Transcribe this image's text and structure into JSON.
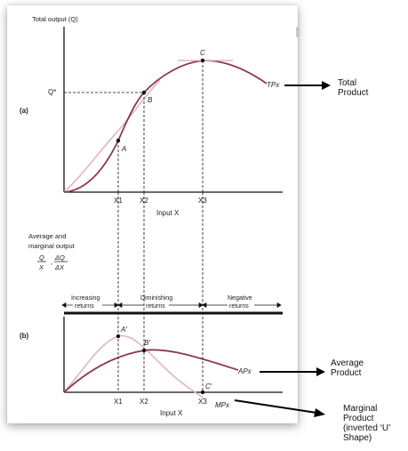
{
  "panel_a": {
    "label": "(a)",
    "y_axis_label": "Total output (Q)",
    "q_star": "Q*",
    "x_axis_label": "Input X",
    "tick_labels": [
      "X1",
      "X2",
      "X3"
    ],
    "points": [
      "A",
      "B",
      "C"
    ],
    "curve_label": "TPx"
  },
  "panel_b": {
    "label": "(b)",
    "y_axis_label_line1": "Average and",
    "y_axis_label_line2": "marginal output",
    "fraction_q": "Q",
    "fraction_x": "X",
    "fraction_dq": "ΔQ",
    "fraction_dx": "ΔX",
    "regions": [
      {
        "line1": "Increasing",
        "line2": "returns"
      },
      {
        "line1": "Diminishing",
        "line2": "returns"
      },
      {
        "line1": "Negative",
        "line2": "returns"
      }
    ],
    "points": [
      "A′",
      "B′",
      "C′"
    ],
    "tick_labels": [
      "X1",
      "X2",
      "X3"
    ],
    "x_axis_label": "Input X",
    "ap_label": "APx",
    "mp_label": "MPx"
  },
  "annotations": {
    "total_product": [
      "Total",
      "Product"
    ],
    "average_product": [
      "Average",
      "Product"
    ],
    "marginal_product": [
      "Marginal",
      "Product",
      "(inverted ‘U’",
      "Shape)"
    ]
  },
  "colors": {
    "tp_curve": "#8b3a4a",
    "mp_curve": "#e0b7ba",
    "axis": "#111111"
  }
}
